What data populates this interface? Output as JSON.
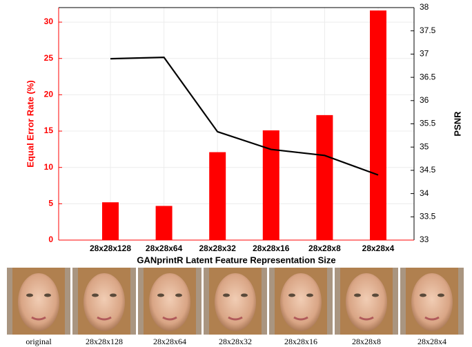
{
  "chart_data": {
    "type": "bar_line",
    "xlabel": "GANprintR Latent Feature Representation Size",
    "ylabel": "Equal Error Rate (%)",
    "y2label": "PSNR",
    "categories": [
      "28x28x128",
      "28x28x64",
      "28x28x32",
      "28x28x16",
      "28x28x8",
      "28x28x4"
    ],
    "series": [
      {
        "type": "bar",
        "color": "#ff0000",
        "values": [
          5.2,
          4.7,
          12.1,
          15.1,
          17.2,
          31.6
        ]
      },
      {
        "type": "line",
        "color": "#000000",
        "axis": "y2",
        "values": [
          36.9,
          36.93,
          35.33,
          34.95,
          34.82,
          34.4
        ]
      }
    ],
    "ylim": [
      0,
      32
    ],
    "yticks": [
      0,
      5,
      10,
      15,
      20,
      25,
      30
    ],
    "y2lim": [
      33,
      38
    ],
    "y2ticks": [
      33,
      33.5,
      34,
      34.5,
      35,
      35.5,
      36,
      36.5,
      37,
      37.5,
      38
    ],
    "grid": true
  },
  "images": [
    {
      "caption": "original"
    },
    {
      "caption": "28x28x128"
    },
    {
      "caption": "28x28x64"
    },
    {
      "caption": "28x28x32"
    },
    {
      "caption": "28x28x16"
    },
    {
      "caption": "28x28x8"
    },
    {
      "caption": "28x28x4"
    }
  ]
}
